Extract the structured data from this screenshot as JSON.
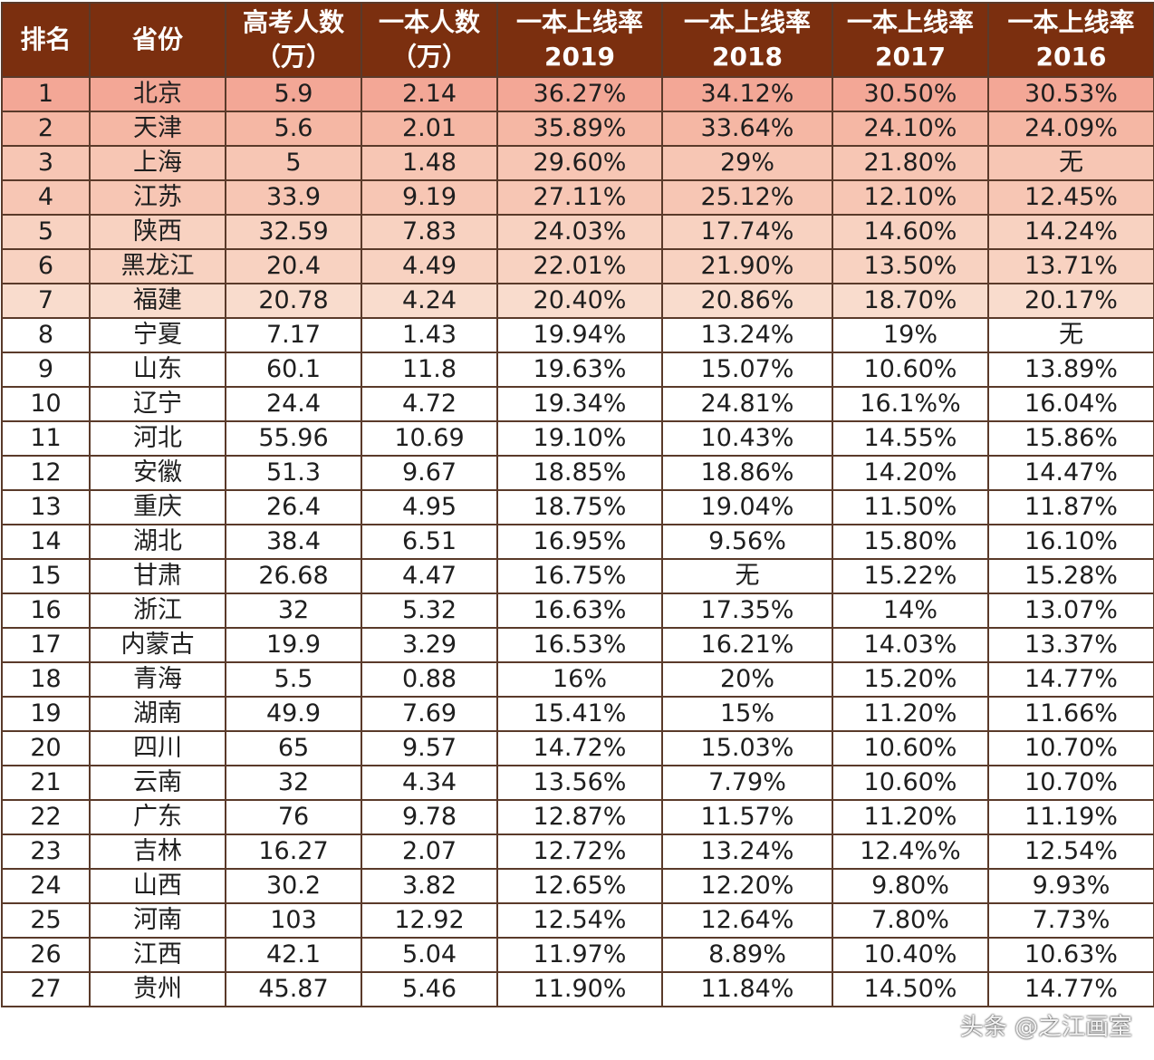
{
  "table": {
    "headers": [
      {
        "l1": "排名",
        "l2": ""
      },
      {
        "l1": "省份",
        "l2": ""
      },
      {
        "l1": "高考人数",
        "l2": "（万）"
      },
      {
        "l1": "一本人数",
        "l2": "（万）"
      },
      {
        "l1": "一本上线率",
        "l2": "2019"
      },
      {
        "l1": "一本上线率",
        "l2": "2018"
      },
      {
        "l1": "一本上线率",
        "l2": "2017"
      },
      {
        "l1": "一本上线率",
        "l2": "2016"
      }
    ],
    "rows": [
      [
        "1",
        "北京",
        "5.9",
        "2.14",
        "36.27%",
        "34.12%",
        "30.50%",
        "30.53%"
      ],
      [
        "2",
        "天津",
        "5.6",
        "2.01",
        "35.89%",
        "33.64%",
        "24.10%",
        "24.09%"
      ],
      [
        "3",
        "上海",
        "5",
        "1.48",
        "29.60%",
        "29%",
        "21.80%",
        "无"
      ],
      [
        "4",
        "江苏",
        "33.9",
        "9.19",
        "27.11%",
        "25.12%",
        "12.10%",
        "12.45%"
      ],
      [
        "5",
        "陕西",
        "32.59",
        "7.83",
        "24.03%",
        "17.74%",
        "14.60%",
        "14.24%"
      ],
      [
        "6",
        "黑龙江",
        "20.4",
        "4.49",
        "22.01%",
        "21.90%",
        "13.50%",
        "13.71%"
      ],
      [
        "7",
        "福建",
        "20.78",
        "4.24",
        "20.40%",
        "20.86%",
        "18.70%",
        "20.17%"
      ],
      [
        "8",
        "宁夏",
        "7.17",
        "1.43",
        "19.94%",
        "13.24%",
        "19%",
        "无"
      ],
      [
        "9",
        "山东",
        "60.1",
        "11.8",
        "19.63%",
        "15.07%",
        "10.60%",
        "13.89%"
      ],
      [
        "10",
        "辽宁",
        "24.4",
        "4.72",
        "19.34%",
        "24.81%",
        "16.1%%",
        "16.04%"
      ],
      [
        "11",
        "河北",
        "55.96",
        "10.69",
        "19.10%",
        "10.43%",
        "14.55%",
        "15.86%"
      ],
      [
        "12",
        "安徽",
        "51.3",
        "9.67",
        "18.85%",
        "18.86%",
        "14.20%",
        "14.47%"
      ],
      [
        "13",
        "重庆",
        "26.4",
        "4.95",
        "18.75%",
        "19.04%",
        "11.50%",
        "11.87%"
      ],
      [
        "14",
        "湖北",
        "38.4",
        "6.51",
        "16.95%",
        "9.56%",
        "15.80%",
        "16.10%"
      ],
      [
        "15",
        "甘肃",
        "26.68",
        "4.47",
        "16.75%",
        "无",
        "15.22%",
        "15.28%"
      ],
      [
        "16",
        "浙江",
        "32",
        "5.32",
        "16.63%",
        "17.35%",
        "14%",
        "13.07%"
      ],
      [
        "17",
        "内蒙古",
        "19.9",
        "3.29",
        "16.53%",
        "16.21%",
        "14.03%",
        "13.37%"
      ],
      [
        "18",
        "青海",
        "5.5",
        "0.88",
        "16%",
        "20%",
        "15.20%",
        "14.77%"
      ],
      [
        "19",
        "湖南",
        "49.9",
        "7.69",
        "15.41%",
        "15%",
        "11.20%",
        "11.66%"
      ],
      [
        "20",
        "四川",
        "65",
        "9.57",
        "14.72%",
        "15.03%",
        "10.60%",
        "10.70%"
      ],
      [
        "21",
        "云南",
        "32",
        "4.34",
        "13.56%",
        "7.79%",
        "10.60%",
        "10.70%"
      ],
      [
        "22",
        "广东",
        "76",
        "9.78",
        "12.87%",
        "11.57%",
        "11.20%",
        "11.19%"
      ],
      [
        "23",
        "吉林",
        "16.27",
        "2.07",
        "12.72%",
        "13.24%",
        "12.4%%",
        "12.54%"
      ],
      [
        "24",
        "山西",
        "30.2",
        "3.82",
        "12.65%",
        "12.20%",
        "9.80%",
        "9.93%"
      ],
      [
        "25",
        "河南",
        "103",
        "12.92",
        "12.54%",
        "12.64%",
        "7.80%",
        "7.73%"
      ],
      [
        "26",
        "江西",
        "42.1",
        "5.04",
        "11.97%",
        "8.89%",
        "10.40%",
        "10.63%"
      ],
      [
        "27",
        "贵州",
        "45.87",
        "5.46",
        "11.90%",
        "11.84%",
        "14.50%",
        "14.77%"
      ]
    ]
  },
  "watermark": "头条 @之江画室",
  "colors": {
    "header_bg": "#7b2f0f",
    "header_text": "#ffffff",
    "highlight_rows": [
      "#f3a796",
      "#f5b7a4",
      "#f7c6b4",
      "#f7c6b4",
      "#f8d2c1",
      "#f8d2c1",
      "#f9dccd"
    ],
    "border": "#5a3a2a"
  }
}
